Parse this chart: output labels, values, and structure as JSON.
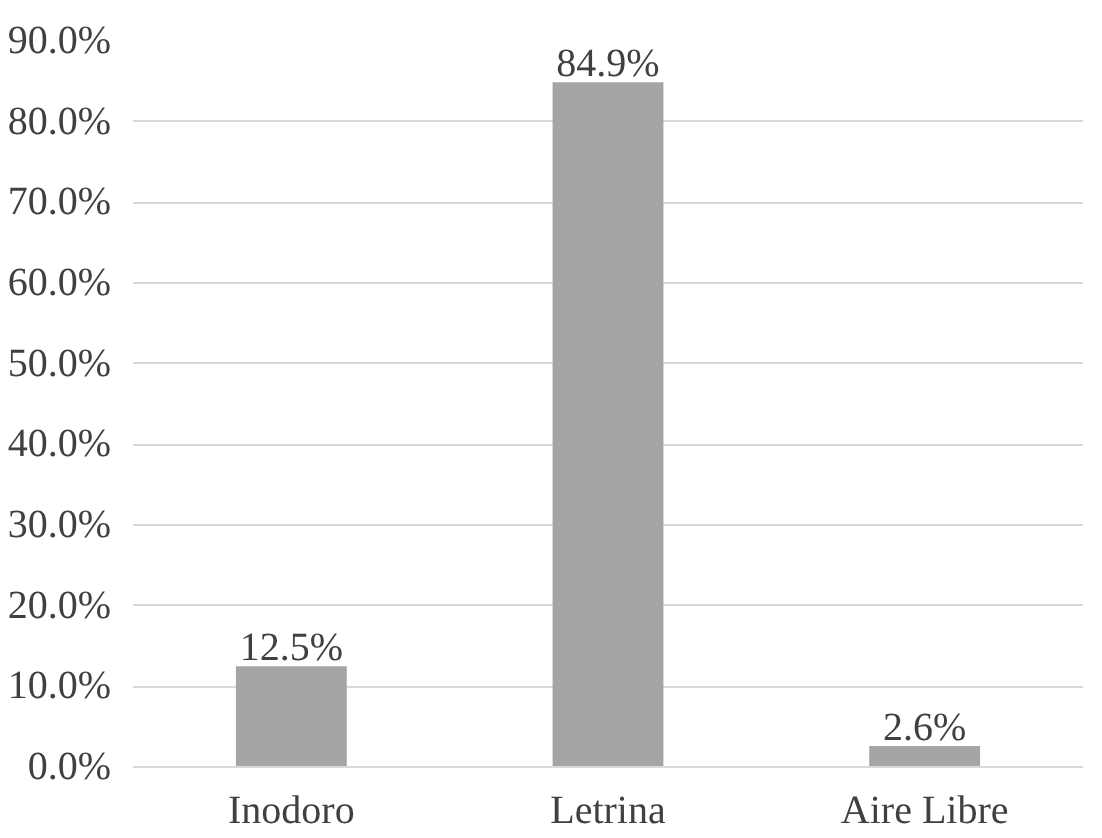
{
  "chart_data": {
    "type": "bar",
    "categories": [
      "Inodoro",
      "Letrina",
      "Aire Libre"
    ],
    "values": [
      12.5,
      84.9,
      2.6
    ],
    "value_labels": [
      "12.5%",
      "84.9%",
      "2.6%"
    ],
    "color": "#a5a5a5",
    "ylim": [
      0,
      90
    ],
    "yticks": [
      {
        "value": 0,
        "label": "0.0%"
      },
      {
        "value": 10,
        "label": "10.0%"
      },
      {
        "value": 20,
        "label": "20.0%"
      },
      {
        "value": 30,
        "label": "30.0%"
      },
      {
        "value": 40,
        "label": "40.0%"
      },
      {
        "value": 50,
        "label": "50.0%"
      },
      {
        "value": 60,
        "label": "60.0%"
      },
      {
        "value": 70,
        "label": "70.0%"
      },
      {
        "value": 80,
        "label": "80.0%"
      },
      {
        "value": 90,
        "label": "90.0%"
      }
    ],
    "grid": "y"
  }
}
